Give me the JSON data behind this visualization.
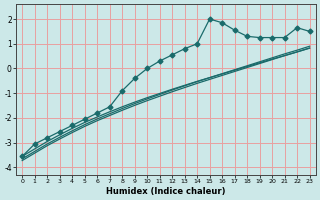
{
  "xlabel": "Humidex (Indice chaleur)",
  "bg_color": "#cce8e8",
  "grid_color": "#e8a0a0",
  "line_color": "#1a6b6b",
  "xlim": [
    -0.5,
    23.5
  ],
  "ylim": [
    -4.3,
    2.6
  ],
  "xticks": [
    0,
    1,
    2,
    3,
    4,
    5,
    6,
    7,
    8,
    9,
    10,
    11,
    12,
    13,
    14,
    15,
    16,
    17,
    18,
    19,
    20,
    21,
    22,
    23
  ],
  "yticks": [
    -4,
    -3,
    -2,
    -1,
    0,
    1,
    2
  ],
  "line1_x": [
    0,
    1,
    2,
    3,
    4,
    5,
    6,
    7,
    8,
    9,
    10,
    11,
    12,
    13,
    14,
    15,
    16,
    17,
    18,
    19,
    20,
    21,
    22,
    23
  ],
  "line1_y": [
    -3.55,
    -3.25,
    -2.95,
    -2.68,
    -2.42,
    -2.18,
    -1.96,
    -1.75,
    -1.55,
    -1.36,
    -1.18,
    -1.01,
    -0.84,
    -0.68,
    -0.52,
    -0.37,
    -0.22,
    -0.07,
    0.08,
    0.23,
    0.38,
    0.52,
    0.67,
    0.82
  ],
  "line2_x": [
    0,
    1,
    2,
    3,
    4,
    5,
    6,
    7,
    8,
    9,
    10,
    11,
    12,
    13,
    14,
    15,
    16,
    17,
    18,
    19,
    20,
    21,
    22,
    23
  ],
  "line2_y": [
    -3.65,
    -3.35,
    -3.05,
    -2.78,
    -2.52,
    -2.27,
    -2.04,
    -1.83,
    -1.62,
    -1.42,
    -1.23,
    -1.05,
    -0.87,
    -0.7,
    -0.53,
    -0.37,
    -0.21,
    -0.05,
    0.11,
    0.27,
    0.43,
    0.59,
    0.74,
    0.9
  ],
  "line3_x": [
    0,
    1,
    2,
    3,
    4,
    5,
    6,
    7,
    8,
    9,
    10,
    11,
    12,
    13,
    14,
    15,
    16,
    17,
    18,
    19,
    20,
    21,
    22,
    23
  ],
  "line3_y": [
    -3.72,
    -3.42,
    -3.12,
    -2.85,
    -2.59,
    -2.34,
    -2.11,
    -1.9,
    -1.69,
    -1.49,
    -1.3,
    -1.12,
    -0.94,
    -0.77,
    -0.6,
    -0.44,
    -0.28,
    -0.12,
    0.04,
    0.2,
    0.36,
    0.52,
    0.67,
    0.83
  ],
  "zigzag_x": [
    0,
    1,
    2,
    3,
    4,
    5,
    6,
    7,
    8,
    9,
    10,
    11,
    12,
    13,
    14,
    15,
    16,
    17,
    18,
    19,
    20,
    21,
    22,
    23
  ],
  "zigzag_y": [
    -3.55,
    -3.05,
    -2.8,
    -2.55,
    -2.3,
    -2.05,
    -1.8,
    -1.55,
    -0.9,
    -0.4,
    0.0,
    0.3,
    0.55,
    0.8,
    1.0,
    2.0,
    1.85,
    1.55,
    1.3,
    1.25,
    1.25,
    1.25,
    1.65,
    1.5
  ],
  "marker": "D",
  "marker_size": 2.5,
  "linewidth": 0.9
}
